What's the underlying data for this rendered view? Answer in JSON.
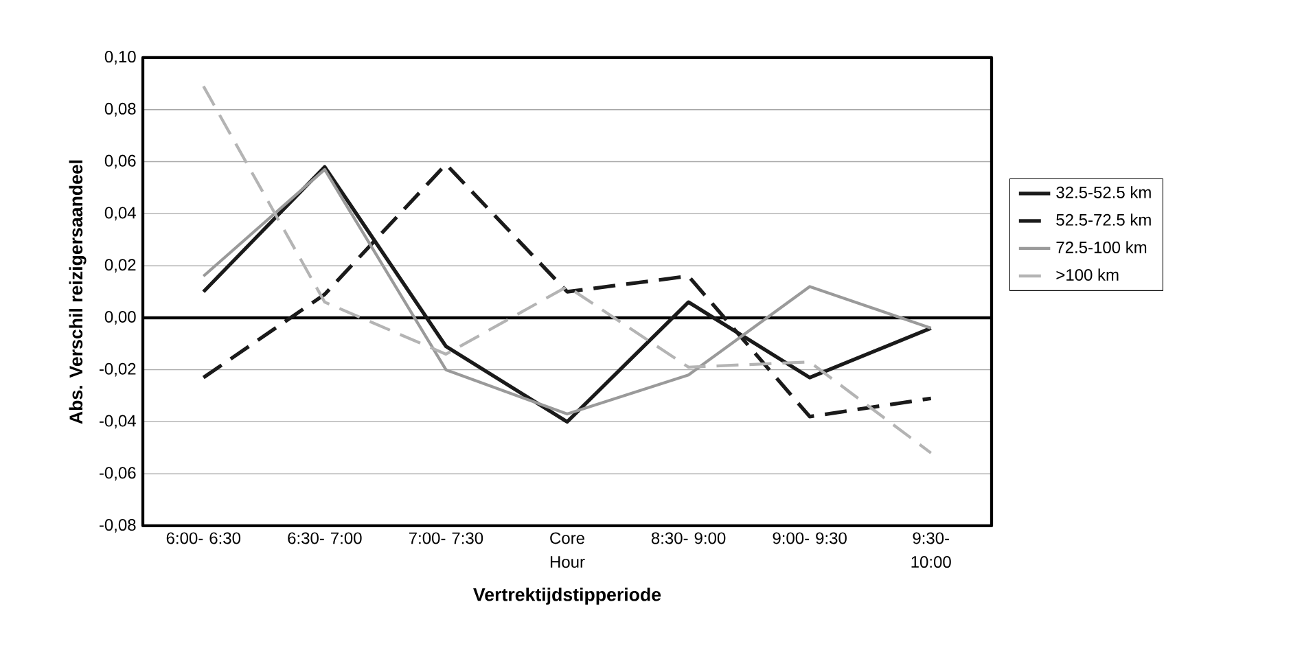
{
  "chart_data": {
    "type": "line",
    "xlabel": "Vertrektijdstipperiode",
    "ylabel": "Abs. Verschil reizigersaandeel",
    "categories": [
      "6:00- 6:30",
      "6:30- 7:00",
      "7:00- 7:30",
      "Core Hour",
      "8:30- 9:00",
      "9:00- 9:30",
      "9:30- 10:00"
    ],
    "series": [
      {
        "name": "32.5-52.5 km",
        "color": "#1a1a1a",
        "line_style": "solid",
        "values": [
          0.01,
          0.058,
          -0.011,
          -0.04,
          0.006,
          -0.023,
          -0.004
        ]
      },
      {
        "name": "52.5-72.5 km",
        "color": "#1a1a1a",
        "line_style": "dashed",
        "values": [
          -0.023,
          0.009,
          0.059,
          0.01,
          0.016,
          -0.038,
          -0.031
        ]
      },
      {
        "name": "72.5-100 km",
        "color": "#9a9a9a",
        "line_style": "solid",
        "values": [
          0.016,
          0.057,
          -0.02,
          -0.037,
          -0.022,
          0.012,
          -0.004
        ]
      },
      {
        "name": ">100 km",
        "color": "#b4b4b4",
        "line_style": "dashed",
        "values": [
          0.089,
          0.006,
          -0.014,
          0.012,
          -0.019,
          -0.017,
          -0.052
        ]
      }
    ],
    "ylim": [
      -0.08,
      0.1
    ],
    "yticks": [
      {
        "value": -0.08,
        "label": "-0,08"
      },
      {
        "value": -0.06,
        "label": "-0,06"
      },
      {
        "value": -0.04,
        "label": "-0,04"
      },
      {
        "value": -0.02,
        "label": "-0,02"
      },
      {
        "value": 0.0,
        "label": "0,00"
      },
      {
        "value": 0.02,
        "label": "0,02"
      },
      {
        "value": 0.04,
        "label": "0,04"
      },
      {
        "value": 0.06,
        "label": "0,06"
      },
      {
        "value": 0.08,
        "label": "0,08"
      },
      {
        "value": 0.1,
        "label": "0,10"
      }
    ],
    "ref_lines": [
      {
        "axis": "y",
        "value": 0.0,
        "color": "#000000"
      }
    ],
    "grid": "y",
    "legend": "right",
    "marker": "none"
  }
}
